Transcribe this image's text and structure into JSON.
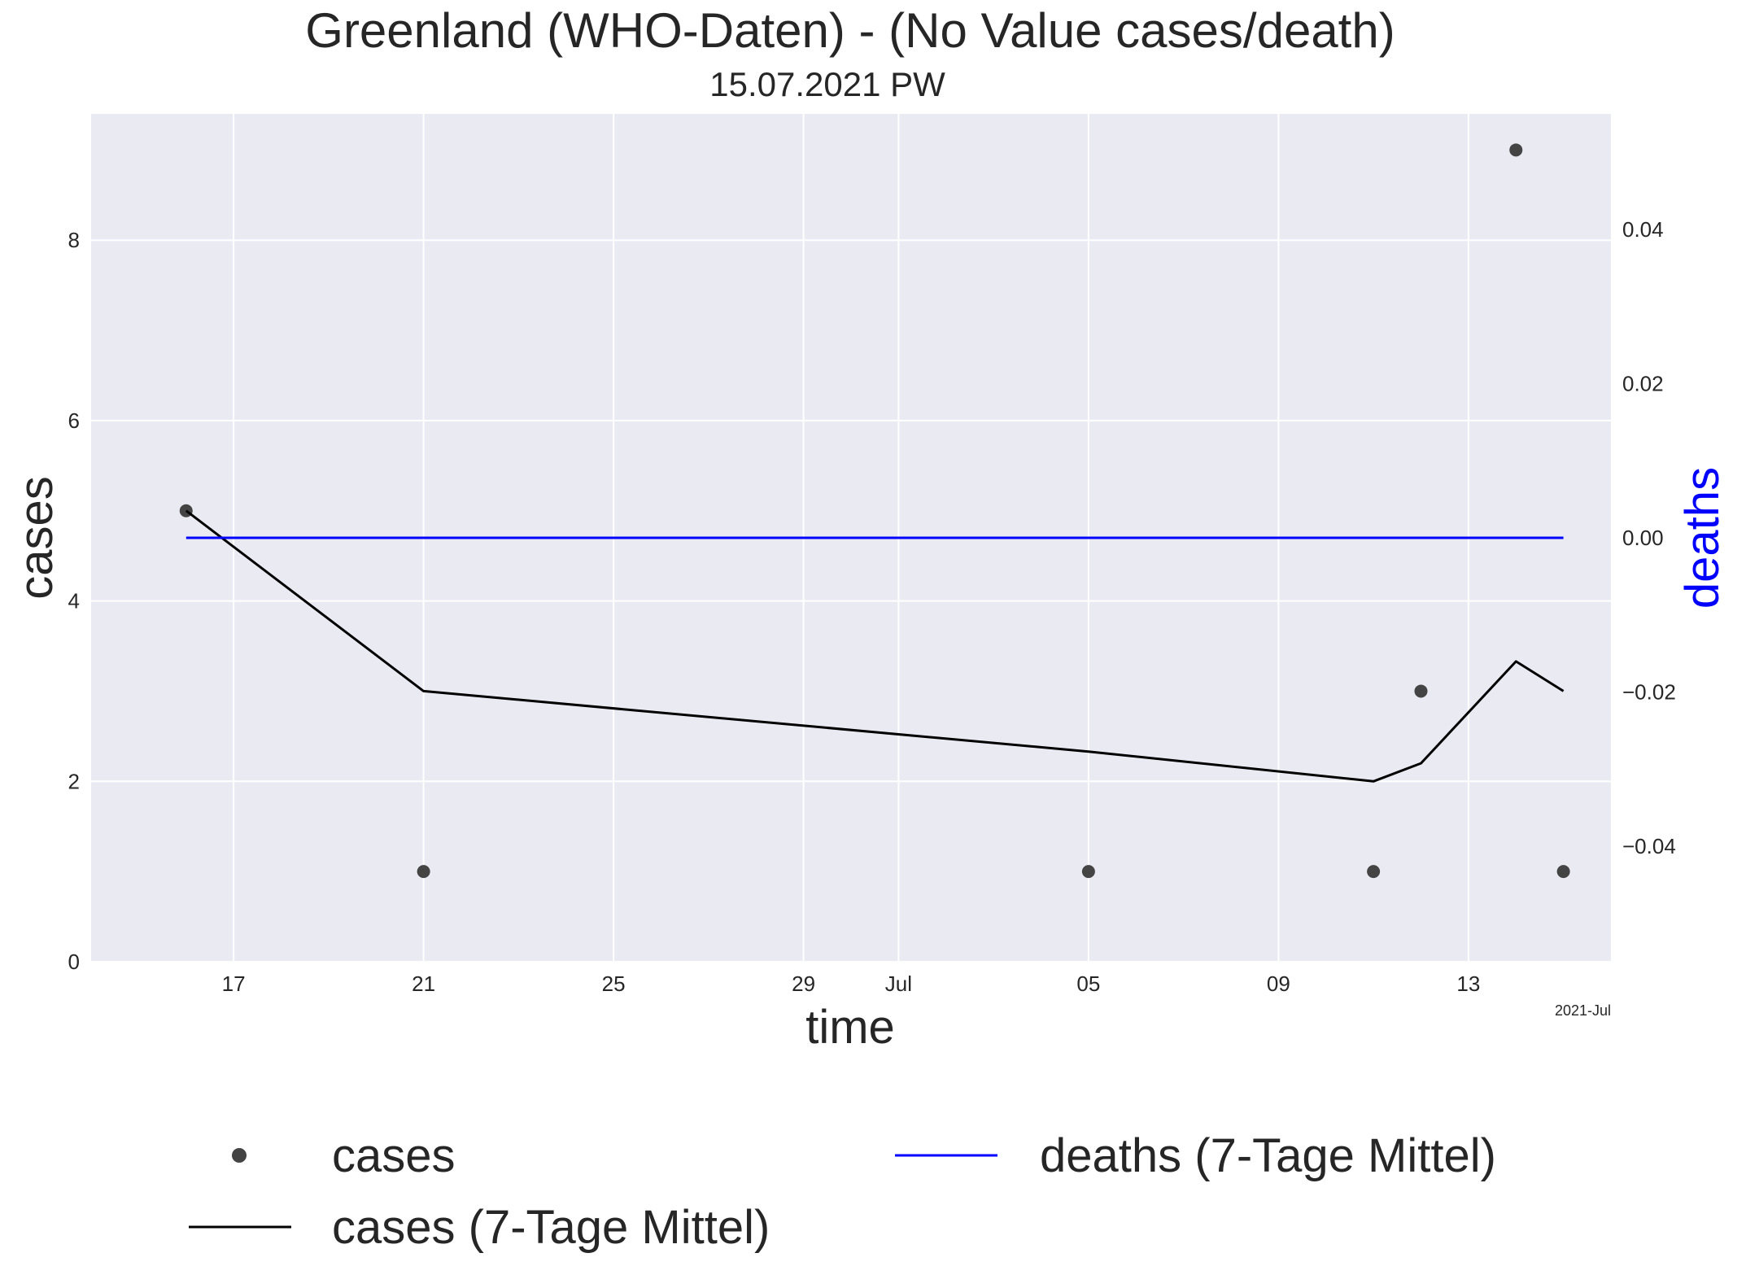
{
  "chart_data": {
    "type": "line",
    "title": "Greenland (WHO-Daten) - (No Value cases/death)",
    "subtitle": "15.07.2021 PW",
    "xlabel": "time",
    "ylabel": "cases",
    "y2label": "deaths",
    "x_offset_label": "2021-Jul",
    "x_range": [
      "2021-06-14",
      "2021-07-16"
    ],
    "x_ticks": [
      {
        "date": "2021-06-17",
        "label": "17"
      },
      {
        "date": "2021-06-21",
        "label": "21"
      },
      {
        "date": "2021-06-25",
        "label": "25"
      },
      {
        "date": "2021-06-29",
        "label": "29"
      },
      {
        "date": "2021-07-01",
        "label": "Jul"
      },
      {
        "date": "2021-07-05",
        "label": "05"
      },
      {
        "date": "2021-07-09",
        "label": "09"
      },
      {
        "date": "2021-07-13",
        "label": "13"
      }
    ],
    "ylim": [
      0,
      9.4
    ],
    "y_ticks": [
      0,
      2,
      4,
      6,
      8
    ],
    "y2lim": [
      -0.055,
      0.055
    ],
    "y2_ticks": [
      {
        "value": -0.04,
        "label": "−0.04"
      },
      {
        "value": -0.02,
        "label": "−0.02"
      },
      {
        "value": 0.0,
        "label": "0.00"
      },
      {
        "value": 0.02,
        "label": "0.02"
      },
      {
        "value": 0.04,
        "label": "0.04"
      }
    ],
    "grid": true,
    "legend_position": "bottom",
    "series": [
      {
        "name": "cases",
        "kind": "scatter",
        "axis": "left",
        "color": "#444444",
        "points": [
          {
            "x": "2021-06-16",
            "y": 5
          },
          {
            "x": "2021-06-21",
            "y": 1
          },
          {
            "x": "2021-07-05",
            "y": 1
          },
          {
            "x": "2021-07-11",
            "y": 1
          },
          {
            "x": "2021-07-12",
            "y": 3
          },
          {
            "x": "2021-07-14",
            "y": 9
          },
          {
            "x": "2021-07-15",
            "y": 1
          }
        ]
      },
      {
        "name": "cases (7-Tage Mittel)",
        "kind": "line",
        "axis": "left",
        "color": "#000000",
        "points": [
          {
            "x": "2021-06-16",
            "y": 5
          },
          {
            "x": "2021-06-21",
            "y": 3
          },
          {
            "x": "2021-07-05",
            "y": 2.33
          },
          {
            "x": "2021-07-11",
            "y": 2
          },
          {
            "x": "2021-07-12",
            "y": 2.2
          },
          {
            "x": "2021-07-14",
            "y": 3.33
          },
          {
            "x": "2021-07-15",
            "y": 3
          }
        ]
      },
      {
        "name": "deaths (7-Tage Mittel)",
        "kind": "line",
        "axis": "right",
        "color": "#0000ff",
        "points": [
          {
            "x": "2021-06-16",
            "y": 0
          },
          {
            "x": "2021-07-15",
            "y": 0
          }
        ]
      }
    ],
    "colors": {
      "plot_background": "#eaeaf2",
      "grid": "#ffffff",
      "text": "#262626",
      "deaths_axis_label": "#0000ff"
    }
  }
}
